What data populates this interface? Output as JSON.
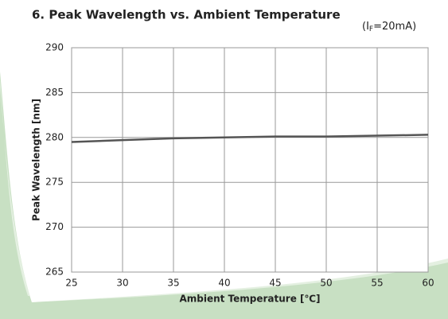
{
  "chart_data": {
    "type": "line",
    "title": "6. Peak Wavelength vs. Ambient Temperature",
    "subtitle": [
      "(I",
      "F",
      "=20mA)"
    ],
    "x_label": "Ambient Temperature [℃]",
    "y_label": "Peak Wavelength [nm]",
    "x": [
      25,
      30,
      35,
      40,
      45,
      50,
      55,
      60
    ],
    "series": [
      {
        "name": "Peak Wavelength",
        "color": "#555555",
        "values": [
          279.5,
          279.7,
          279.9,
          280.0,
          280.1,
          280.1,
          280.2,
          280.3
        ]
      }
    ],
    "xlim": [
      25,
      60
    ],
    "xticks": [
      25,
      30,
      35,
      40,
      45,
      50,
      55,
      60
    ],
    "ylim": [
      265,
      290
    ],
    "yticks": [
      265,
      270,
      275,
      280,
      285,
      290
    ],
    "grid": true
  }
}
